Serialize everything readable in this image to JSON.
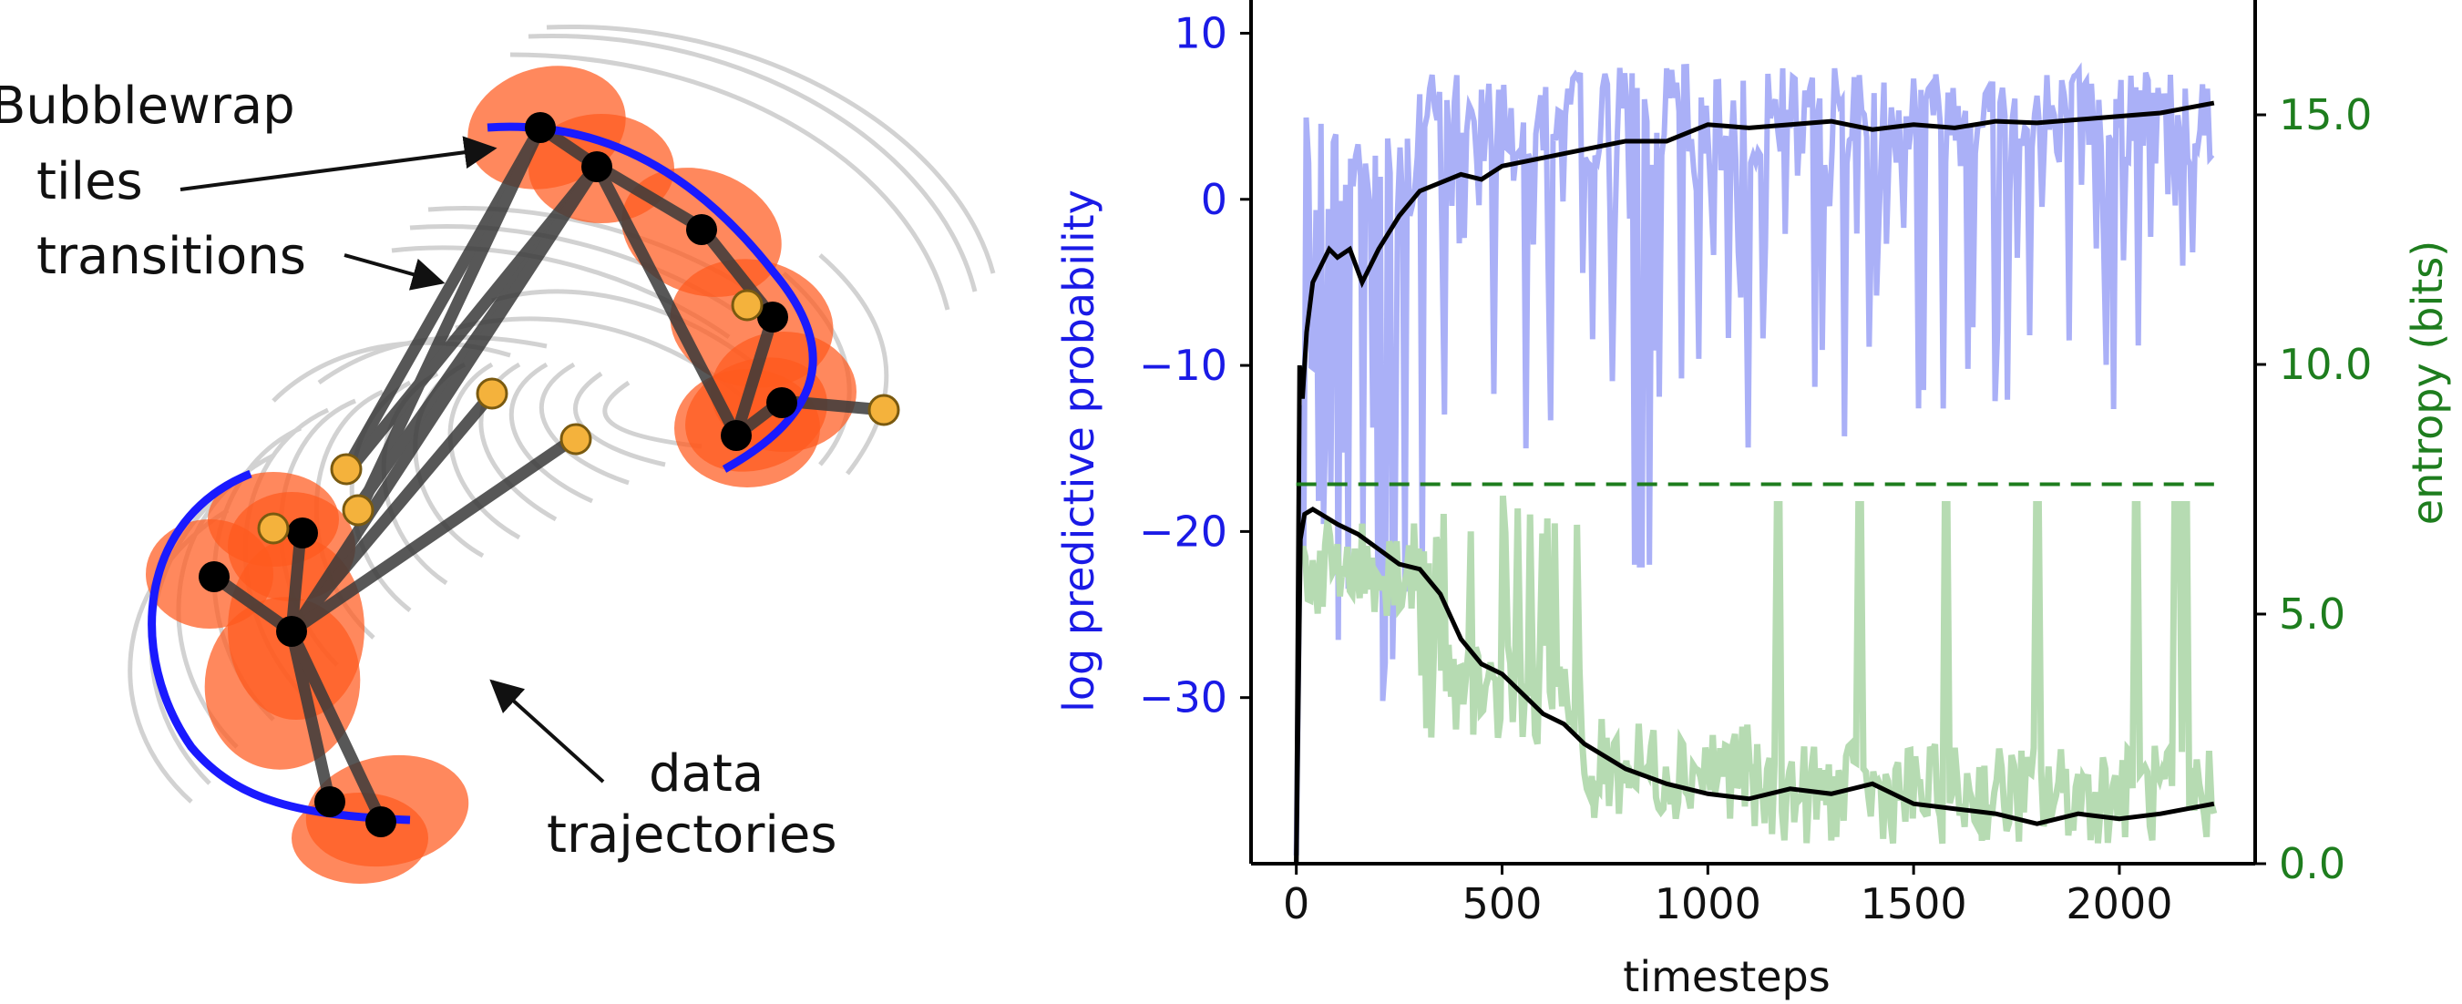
{
  "diagram": {
    "labels": {
      "bubblewrap": "Bubblewrap",
      "tiles": "tiles",
      "transitions": "transitions",
      "data": "data",
      "trajectories": "trajectories"
    },
    "colors": {
      "tile": "#ff5a1f",
      "path": "#1a1aff",
      "node": "#000000",
      "orange_node": "#f4b23c",
      "edge": "#3a3a3a",
      "trajectory": "#c4c4c4"
    }
  },
  "chart_data": {
    "type": "line",
    "xlabel": "timesteps",
    "ylabel_left": "log predictive probability",
    "ylabel_right": "entropy (bits)",
    "x_ticks": [
      0,
      500,
      1000,
      1500,
      2000
    ],
    "y_left_ticks": [
      10,
      0,
      -10,
      -20,
      -30
    ],
    "y_right_ticks": [
      "15.0",
      "10.0",
      "5.0",
      "0.0"
    ],
    "xlim": [
      -110,
      2330
    ],
    "ylim_left": [
      -40,
      12
    ],
    "ylim_right": [
      0,
      17.3
    ],
    "colors": {
      "log_prob_raw": "#aab0f7",
      "entropy_raw": "#b6dbb2",
      "smoothed": "#000000",
      "left_axis": "#1a1ae6",
      "right_axis": "#1e7d1e",
      "max_entropy": "#1e7d1e"
    },
    "series": [
      {
        "axis": "left",
        "style": "smoothed",
        "x": [
          0,
          8,
          15,
          25,
          40,
          60,
          80,
          100,
          130,
          160,
          200,
          250,
          300,
          350,
          400,
          450,
          500,
          600,
          700,
          800,
          900,
          1000,
          1100,
          1200,
          1300,
          1400,
          1500,
          1600,
          1700,
          1800,
          1900,
          2000,
          2100,
          2230
        ],
        "y": [
          -40,
          -10,
          -12,
          -8,
          -5,
          -4,
          -3,
          -3.5,
          -3,
          -5,
          -3,
          -1,
          0.5,
          1,
          1.5,
          1.2,
          2,
          2.5,
          3,
          3.5,
          3.5,
          4.5,
          4.3,
          4.5,
          4.7,
          4.2,
          4.5,
          4.3,
          4.7,
          4.6,
          4.8,
          5,
          5.2,
          5.8
        ]
      },
      {
        "axis": "right",
        "style": "smoothed",
        "x": [
          0,
          10,
          20,
          40,
          60,
          80,
          100,
          150,
          200,
          250,
          300,
          350,
          400,
          450,
          500,
          550,
          600,
          650,
          700,
          800,
          900,
          1000,
          1100,
          1200,
          1300,
          1400,
          1500,
          1600,
          1700,
          1800,
          1900,
          2000,
          2100,
          2230
        ],
        "y": [
          0,
          6.5,
          7,
          7.1,
          7,
          6.9,
          6.8,
          6.6,
          6.3,
          6,
          5.9,
          5.4,
          4.5,
          4,
          3.8,
          3.4,
          3,
          2.8,
          2.4,
          1.9,
          1.6,
          1.4,
          1.3,
          1.5,
          1.4,
          1.6,
          1.2,
          1.1,
          1,
          0.8,
          1,
          0.9,
          1,
          1.2
        ]
      },
      {
        "axis": "right",
        "style": "max_entropy",
        "x": [
          0,
          2230
        ],
        "y": [
          7.6,
          7.6
        ]
      }
    ]
  }
}
